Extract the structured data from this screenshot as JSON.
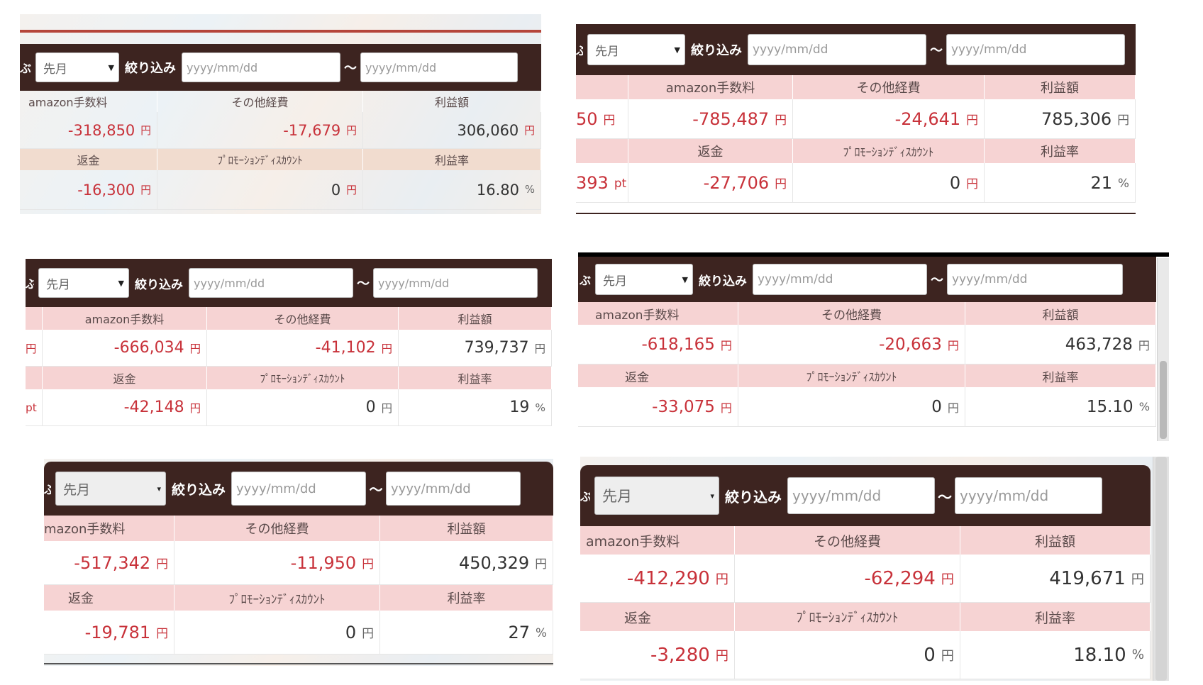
{
  "common": {
    "lead_char": "ぶ",
    "period_select": "先月",
    "filter_label": "絞り込み",
    "date_placeholder": "yyyy/mm/dd",
    "tilde": "〜",
    "label_fee": "amazon手数料",
    "label_fee_clipped": "mazon手数料",
    "label_other": "その他経費",
    "label_profit": "利益額",
    "label_refund": "返金",
    "label_promo": "ﾌﾟﾛﾓｰｼｮﾝﾃﾞｨｽｶｳﾝﾄ",
    "label_rate": "利益率",
    "unit_yen": "円",
    "unit_pct": "%",
    "unit_pt": "pt"
  },
  "panels": [
    {
      "fee": "-318,850",
      "other": "-17,679",
      "profit": "306,060",
      "refund": "-16,300",
      "promo": "0",
      "rate": "16.80"
    },
    {
      "left_value_1": "50",
      "left_value_2": "393",
      "fee": "-785,487",
      "other": "-24,641",
      "profit": "785,306",
      "refund": "-27,706",
      "promo": "0",
      "rate": "21"
    },
    {
      "fee": "-666,034",
      "other": "-41,102",
      "profit": "739,737",
      "refund": "-42,148",
      "promo": "0",
      "rate": "19"
    },
    {
      "fee": "-618,165",
      "other": "-20,663",
      "profit": "463,728",
      "refund": "-33,075",
      "promo": "0",
      "rate": "15.10"
    },
    {
      "fee": "-517,342",
      "other": "-11,950",
      "profit": "450,329",
      "refund": "-19,781",
      "promo": "0",
      "rate": "27"
    },
    {
      "fee": "-412,290",
      "other": "-62,294",
      "profit": "419,671",
      "refund": "-3,280",
      "promo": "0",
      "rate": "18.10"
    }
  ]
}
